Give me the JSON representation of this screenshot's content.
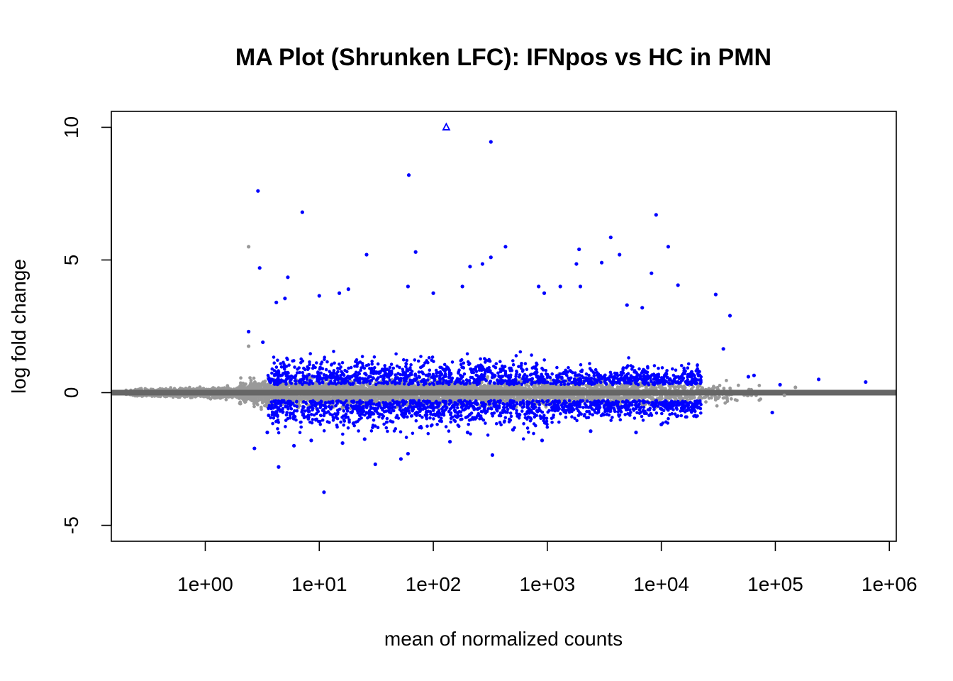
{
  "chart_data": {
    "type": "scatter",
    "title": "MA Plot (Shrunken LFC): IFNpos vs HC in PMN",
    "xlabel": "mean of normalized counts",
    "ylabel": "log fold change",
    "x_scale": "log10",
    "xlim": [
      0.15,
      1150000
    ],
    "ylim": [
      -5.6,
      10.6
    ],
    "x_ticks": [
      {
        "value": 1,
        "label": "1e+00"
      },
      {
        "value": 10,
        "label": "1e+01"
      },
      {
        "value": 100,
        "label": "1e+02"
      },
      {
        "value": 1000,
        "label": "1e+03"
      },
      {
        "value": 10000,
        "label": "1e+04"
      },
      {
        "value": 100000,
        "label": "1e+05"
      },
      {
        "value": 1000000,
        "label": "1e+06"
      }
    ],
    "y_ticks": [
      {
        "value": -5,
        "label": "-5"
      },
      {
        "value": 0,
        "label": "0"
      },
      {
        "value": 5,
        "label": "5"
      },
      {
        "value": 10,
        "label": "10"
      }
    ],
    "grid": false,
    "legend": "none",
    "reference_line": {
      "y": 0,
      "color": "#666666"
    },
    "colors": {
      "significant": "#0000ff",
      "not_significant": "#999999",
      "frame": "#000000"
    },
    "series": [
      {
        "key": "significant",
        "color": "#0000ff",
        "points": [
          [
            2.9,
            7.6
          ],
          [
            7.1,
            6.8
          ],
          [
            61,
            8.2
          ],
          [
            320,
            9.45
          ],
          [
            70,
            5.3
          ],
          [
            26,
            5.2
          ],
          [
            3.0,
            4.7
          ],
          [
            5.3,
            4.35
          ],
          [
            9000,
            6.7
          ],
          [
            11500,
            5.5
          ],
          [
            1900,
            5.4
          ],
          [
            3600,
            5.85
          ],
          [
            4300,
            5.2
          ],
          [
            8200,
            4.5
          ],
          [
            14000,
            4.05
          ],
          [
            30000,
            3.7
          ],
          [
            40000,
            2.9
          ],
          [
            430,
            5.5
          ],
          [
            210,
            4.75
          ],
          [
            270,
            4.85
          ],
          [
            320,
            5.1
          ],
          [
            180,
            4.0
          ],
          [
            60,
            4.0
          ],
          [
            100,
            3.75
          ],
          [
            18,
            3.9
          ],
          [
            15,
            3.75
          ],
          [
            10,
            3.65
          ],
          [
            5.0,
            3.55
          ],
          [
            4.2,
            3.4
          ],
          [
            2.4,
            2.3
          ],
          [
            3.2,
            1.9
          ],
          [
            1800,
            4.85
          ],
          [
            1950,
            4.0
          ],
          [
            3000,
            4.9
          ],
          [
            6800,
            3.2
          ],
          [
            5000,
            3.3
          ],
          [
            840,
            4.0
          ],
          [
            940,
            3.75
          ],
          [
            1300,
            4.0
          ],
          [
            35000,
            1.65
          ],
          [
            58000,
            0.6
          ],
          [
            65000,
            0.65
          ],
          [
            240000,
            0.5
          ],
          [
            110000,
            0.3
          ],
          [
            620000,
            0.4
          ],
          [
            2.7,
            -2.1
          ],
          [
            4.4,
            -2.8
          ],
          [
            11,
            -3.75
          ],
          [
            31,
            -2.7
          ],
          [
            52,
            -2.5
          ],
          [
            330,
            -2.35
          ],
          [
            60,
            -2.3
          ],
          [
            94000,
            -0.75
          ],
          [
            6.0,
            -2.0
          ],
          [
            16,
            -1.9
          ],
          [
            25,
            -1.75
          ],
          [
            140,
            -1.85
          ],
          [
            900,
            -1.8
          ],
          [
            2400,
            -1.45
          ],
          [
            6000,
            -1.5
          ],
          [
            10000,
            -1.2
          ],
          [
            3.5,
            -1.5
          ],
          [
            8.5,
            -1.8
          ],
          [
            200,
            -1.5
          ],
          [
            500,
            -1.4
          ]
        ]
      },
      {
        "key": "not_significant",
        "color": "#999999",
        "points": [
          [
            2.4,
            5.5
          ],
          [
            2.4,
            1.75
          ],
          [
            150000,
            0.2
          ],
          [
            120000,
            -0.1
          ]
        ]
      },
      {
        "key": "clipped",
        "shape": "triangle",
        "color": "#0000ff",
        "points": [
          [
            130,
            10.0
          ]
        ]
      }
    ]
  }
}
